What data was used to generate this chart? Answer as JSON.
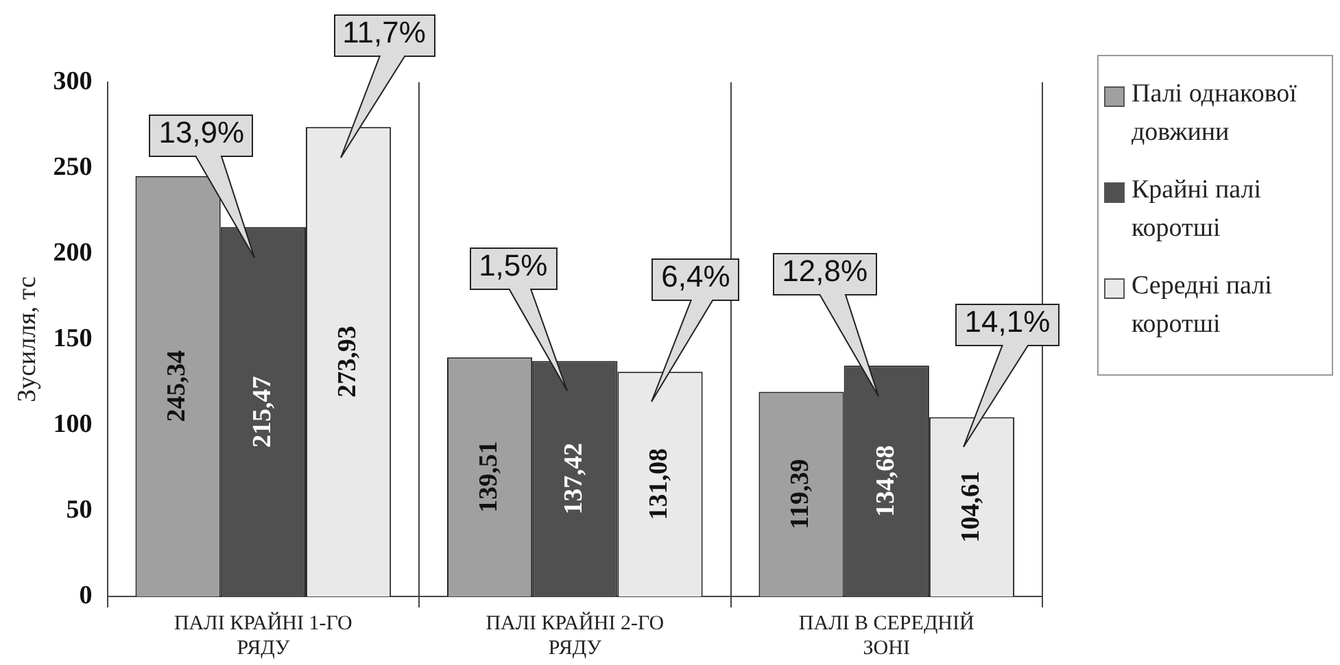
{
  "chart_data": {
    "type": "bar",
    "ylabel": "Зусилля, тс",
    "categories": [
      "ПАЛІ КРАЙНІ 1-ГО РЯДУ",
      "ПАЛІ КРАЙНІ 2-ГО РЯДУ",
      "ПАЛІ В СЕРЕДНІЙ ЗОНІ"
    ],
    "series": [
      {
        "name": "Палі однакової довжини",
        "color": "#a0a0a0",
        "values": [
          245.34,
          139.51,
          119.39
        ],
        "value_labels": [
          "245,34",
          "139,51",
          "119,39"
        ]
      },
      {
        "name": "Крайні палі коротші",
        "color": "#505050",
        "values": [
          215.47,
          137.42,
          134.68
        ],
        "value_labels": [
          "215,47",
          "137,42",
          "134,68"
        ]
      },
      {
        "name": "Середні палі коротші",
        "color": "#e9e9e9",
        "values": [
          273.93,
          131.08,
          104.61
        ],
        "value_labels": [
          "273,93",
          "131,08",
          "104,61"
        ]
      }
    ],
    "ylim": [
      0,
      300
    ],
    "yticks": [
      0,
      50,
      100,
      150,
      200,
      250,
      300
    ],
    "grid": "x",
    "legend": "right",
    "annotations": [
      "13,9%",
      "11,7%",
      "1,5%",
      "6,4%",
      "12,8%",
      "14,1%"
    ]
  }
}
